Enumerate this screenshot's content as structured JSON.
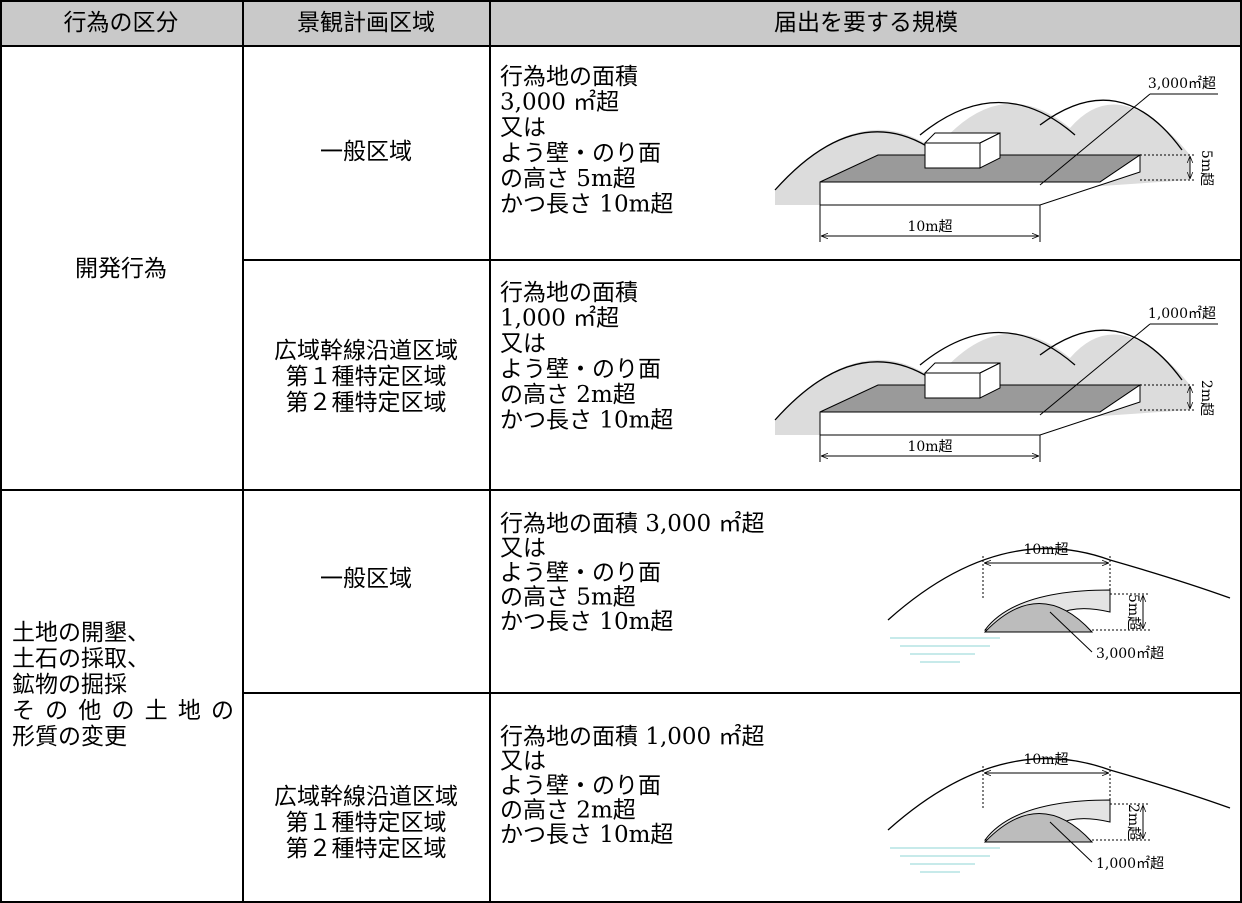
{
  "header": {
    "columns": [
      "行為の区分",
      "景観計画区域",
      "届出を要する規模"
    ]
  },
  "groups": [
    {
      "category": [
        "開発行為"
      ],
      "rows": [
        {
          "zone": [
            "一般区域"
          ],
          "scale": [
            "行為地の面積",
            "3,000 ㎡超",
            "又は",
            "よう壁・のり面",
            "の高さ 5m超",
            "かつ長さ 10m超"
          ],
          "figure": {
            "area": "3,000㎡超",
            "height": "5m超",
            "length": "10m超"
          }
        },
        {
          "zone": [
            "広域幹線沿道区域",
            "第１種特定区域",
            "第２種特定区域"
          ],
          "scale": [
            "行為地の面積",
            "1,000 ㎡超",
            "又は",
            "よう壁・のり面",
            "の高さ 2m超",
            "かつ長さ 10m超"
          ],
          "figure": {
            "area": "1,000㎡超",
            "height": "2m超",
            "length": "10m超"
          }
        }
      ]
    },
    {
      "category": [
        "土地の開墾、",
        "土石の採取、",
        "鉱物の掘採",
        "その他の土地の",
        "形質の変更"
      ],
      "rows": [
        {
          "zone": [
            "一般区域"
          ],
          "scale": [
            "行為地の面積 3,000 ㎡超",
            "又は",
            "よう壁・のり面",
            "の高さ 5m超",
            "かつ長さ 10m超"
          ],
          "figure": {
            "area": "3,000㎡超",
            "height": "5m超",
            "length": "10m超"
          }
        },
        {
          "zone": [
            "広域幹線沿道区域",
            "第１種特定区域",
            "第２種特定区域"
          ],
          "scale": [
            "行為地の面積 1,000 ㎡超",
            "又は",
            "よう壁・のり面",
            "の高さ 2m超",
            "かつ長さ 10m超"
          ],
          "figure": {
            "area": "1,000㎡超",
            "height": "2m超",
            "length": "10m超"
          }
        }
      ]
    }
  ]
}
